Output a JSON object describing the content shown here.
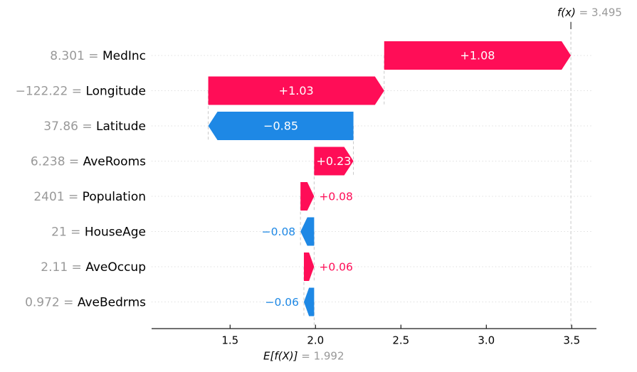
{
  "chart_data": {
    "type": "bar",
    "chart_kind": "shap-waterfall",
    "title": "",
    "xlabel": "",
    "ylabel": "",
    "xlim": [
      1.04,
      3.645
    ],
    "grid": "horizontal-dotted",
    "equals_separator": " = ",
    "fx": {
      "label": "f(x)",
      "value": 3.495,
      "value_text": "3.495"
    },
    "base": {
      "label": "E[f(X)]",
      "value": 1.992,
      "value_text": "1.992"
    },
    "x_axis": {
      "tick_values": [
        1.5,
        2.0,
        2.5,
        3.0,
        3.5
      ],
      "tick_labels": [
        "1.5",
        "2.0",
        "2.5",
        "3.0",
        "3.5"
      ]
    },
    "rows": [
      {
        "feature": "MedInc",
        "feature_value": "8.301",
        "shap": 1.08,
        "shap_label": "+1.08",
        "label_placement": "inside"
      },
      {
        "feature": "Longitude",
        "feature_value": "−122.22",
        "shap": 1.03,
        "shap_label": "+1.03",
        "label_placement": "inside"
      },
      {
        "feature": "Latitude",
        "feature_value": "37.86",
        "shap": -0.85,
        "shap_label": "−0.85",
        "label_placement": "inside"
      },
      {
        "feature": "AveRooms",
        "feature_value": "6.238",
        "shap": 0.23,
        "shap_label": "+0.23",
        "label_placement": "inside"
      },
      {
        "feature": "Population",
        "feature_value": "2401",
        "shap": 0.08,
        "shap_label": "+0.08",
        "label_placement": "outside"
      },
      {
        "feature": "HouseAge",
        "feature_value": "21",
        "shap": -0.08,
        "shap_label": "−0.08",
        "label_placement": "outside"
      },
      {
        "feature": "AveOccup",
        "feature_value": "2.11",
        "shap": 0.06,
        "shap_label": "+0.06",
        "label_placement": "outside"
      },
      {
        "feature": "AveBedrms",
        "feature_value": "0.972",
        "shap": -0.06,
        "shap_label": "−0.06",
        "label_placement": "outside"
      }
    ],
    "colors": {
      "positive": "#ff0d57",
      "negative": "#1e88e5",
      "bar_label_inside": "#ffffff",
      "value_gray": "#999999",
      "annotation_gray": "#999999",
      "feature_text": "#000000",
      "grid_dotted": "#d9d9d9",
      "dashed_line": "#c8c8c8",
      "axis": "#1a1a1a",
      "background": "#ffffff"
    }
  }
}
